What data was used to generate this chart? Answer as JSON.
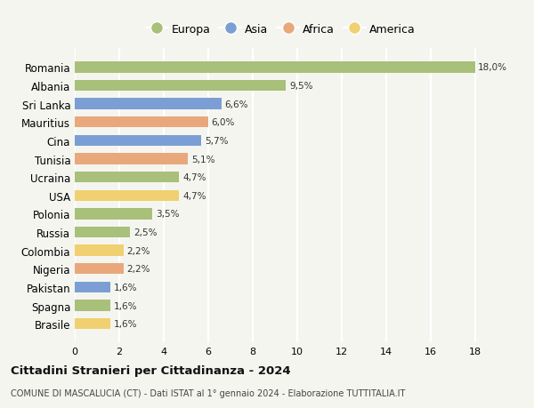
{
  "categories": [
    "Romania",
    "Albania",
    "Sri Lanka",
    "Mauritius",
    "Cina",
    "Tunisia",
    "Ucraina",
    "USA",
    "Polonia",
    "Russia",
    "Colombia",
    "Nigeria",
    "Pakistan",
    "Spagna",
    "Brasile"
  ],
  "values": [
    18.0,
    9.5,
    6.6,
    6.0,
    5.7,
    5.1,
    4.7,
    4.7,
    3.5,
    2.5,
    2.2,
    2.2,
    1.6,
    1.6,
    1.6
  ],
  "labels": [
    "18,0%",
    "9,5%",
    "6,6%",
    "6,0%",
    "5,7%",
    "5,1%",
    "4,7%",
    "4,7%",
    "3,5%",
    "2,5%",
    "2,2%",
    "2,2%",
    "1,6%",
    "1,6%",
    "1,6%"
  ],
  "colors": [
    "#a8c07a",
    "#a8c07a",
    "#7b9fd4",
    "#e8a87c",
    "#7b9fd4",
    "#e8a87c",
    "#a8c07a",
    "#f0d070",
    "#a8c07a",
    "#a8c07a",
    "#f0d070",
    "#e8a87c",
    "#7b9fd4",
    "#a8c07a",
    "#f0d070"
  ],
  "legend_labels": [
    "Europa",
    "Asia",
    "Africa",
    "America"
  ],
  "legend_colors": [
    "#a8c07a",
    "#7b9fd4",
    "#e8a87c",
    "#f0d070"
  ],
  "xlim": [
    0,
    18
  ],
  "xticks": [
    0,
    2,
    4,
    6,
    8,
    10,
    12,
    14,
    16,
    18
  ],
  "title": "Cittadini Stranieri per Cittadinanza - 2024",
  "subtitle": "COMUNE DI MASCALUCIA (CT) - Dati ISTAT al 1° gennaio 2024 - Elaborazione TUTTITALIA.IT",
  "background_color": "#f5f5f0",
  "grid_color": "#ffffff",
  "bar_height": 0.6
}
